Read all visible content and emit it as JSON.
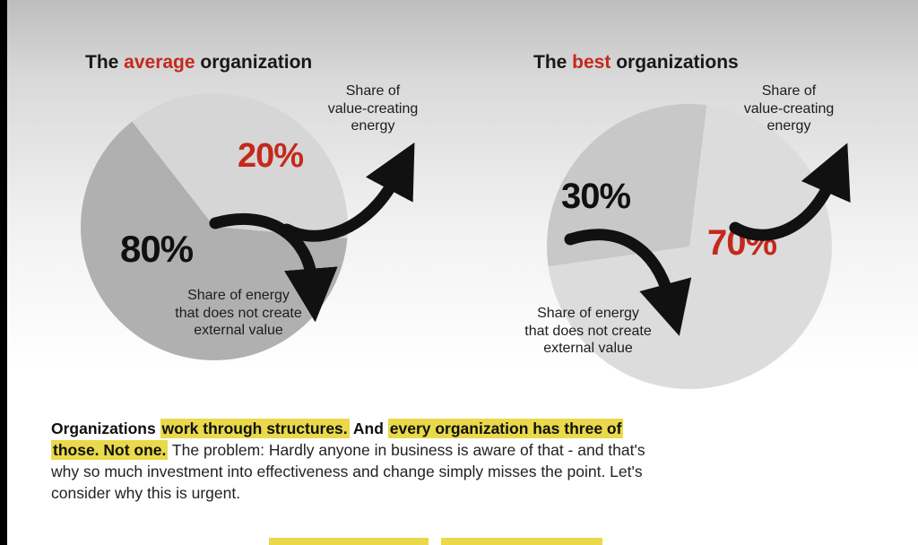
{
  "colors": {
    "accent_red": "#c4291c",
    "highlight_yellow": "#e9d94b",
    "pie_left_dark": "#b0b0b0",
    "pie_left_light": "#d6d6d6",
    "pie_right_dark": "#c8c8c8",
    "pie_right_light": "#dcdcdc",
    "arrow_black": "#111111"
  },
  "charts": [
    {
      "title_prefix": "The ",
      "title_accent": "average",
      "title_suffix": " organization",
      "value_energy_label": "Share of\nvalue-creating\nenergy",
      "value_pct": "20%",
      "waste_pct": "80%",
      "waste_energy_label": "Share of energy\nthat does not create\nexternal value"
    },
    {
      "title_prefix": "The ",
      "title_accent": "best",
      "title_suffix": " organizations",
      "value_energy_label": "Share of\nvalue-creating\nenergy",
      "value_pct": "70%",
      "waste_pct": "30%",
      "waste_energy_label": "Share of energy\nthat does not create\nexternal value"
    }
  ],
  "paragraph": {
    "segments": [
      {
        "text": "Organizations ",
        "bold": true,
        "highlight": false
      },
      {
        "text": "work through structures.",
        "bold": true,
        "highlight": true
      },
      {
        "text": " And ",
        "bold": true,
        "highlight": false
      },
      {
        "text": "every organization has three of those. Not one.",
        "bold": true,
        "highlight": true
      },
      {
        "text": " The problem: Hardly anyone in business is aware of that - and that's why so much investment into effectiveness and change simply misses the point. Let's consider why this is urgent.",
        "bold": false,
        "highlight": false
      }
    ]
  },
  "chart_data": [
    {
      "type": "pie",
      "title": "The average organization",
      "labels": [
        "Share of energy that does not create external value",
        "Share of value-creating energy"
      ],
      "values": [
        80,
        20
      ],
      "value_labels": [
        "80%",
        "20%"
      ],
      "legend_position": "none"
    },
    {
      "type": "pie",
      "title": "The best organizations",
      "labels": [
        "Share of energy that does not create external value",
        "Share of value-creating energy"
      ],
      "values": [
        30,
        70
      ],
      "value_labels": [
        "30%",
        "70%"
      ],
      "legend_position": "none"
    }
  ]
}
